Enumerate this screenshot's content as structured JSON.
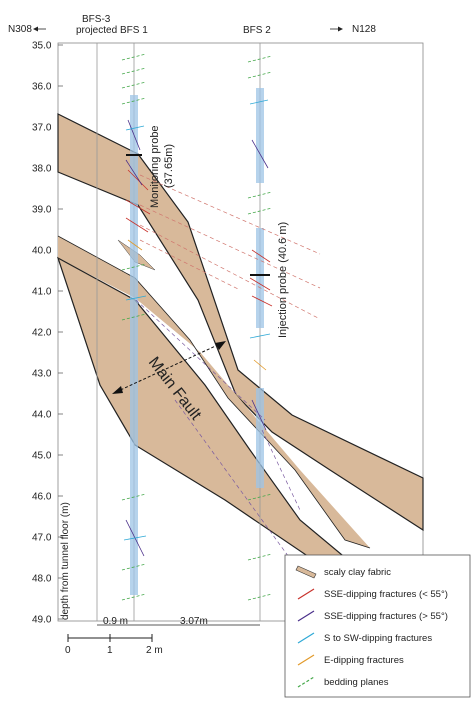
{
  "header": {
    "left_label": "N308",
    "right_label": "N128",
    "bfs3_line1": "BFS-3",
    "bfs3_line2": "projected",
    "bfs1": "BFS 1",
    "bfs2": "BFS 2"
  },
  "depth_axis": {
    "label": "depth from tunnel floor (m)",
    "min": 35.0,
    "max": 49.0,
    "ticks": [
      "35.0",
      "36.0",
      "37.0",
      "38.0",
      "39.0",
      "40.0",
      "41.0",
      "42.0",
      "43.0",
      "44.0",
      "45.0",
      "46.0",
      "47.0",
      "48.0",
      "49.0"
    ]
  },
  "annotations": {
    "monitoring_probe_1": "Monitoring probe",
    "monitoring_probe_2": "(37.65m)",
    "injection_probe": "Injection probe (40.6 m)",
    "main_fault": "Main Fault",
    "spacing_1": "0.9 m",
    "spacing_2": "3.07m"
  },
  "scale_bar": {
    "labels": [
      "0",
      "1",
      "2 m"
    ]
  },
  "legend": {
    "items": [
      {
        "label": "scaly clay fabric",
        "color": "#d8b99a",
        "kind": "fill"
      },
      {
        "label": "SSE-dipping fractures (< 55°)",
        "color": "#c8322c",
        "kind": "line"
      },
      {
        "label": "SSE-dipping fractures (> 55°)",
        "color": "#4a2f8a",
        "kind": "line"
      },
      {
        "label": "S to SW-dipping fractures",
        "color": "#2fa9d6",
        "kind": "line"
      },
      {
        "label": "E-dipping fractures",
        "color": "#e29a2a",
        "kind": "line"
      },
      {
        "label": "bedding planes",
        "color": "#45a84a",
        "kind": "dashed"
      }
    ]
  },
  "colors": {
    "clay": "#d8b99a",
    "borehole": "#9ec4e6",
    "frame": "#777777"
  }
}
